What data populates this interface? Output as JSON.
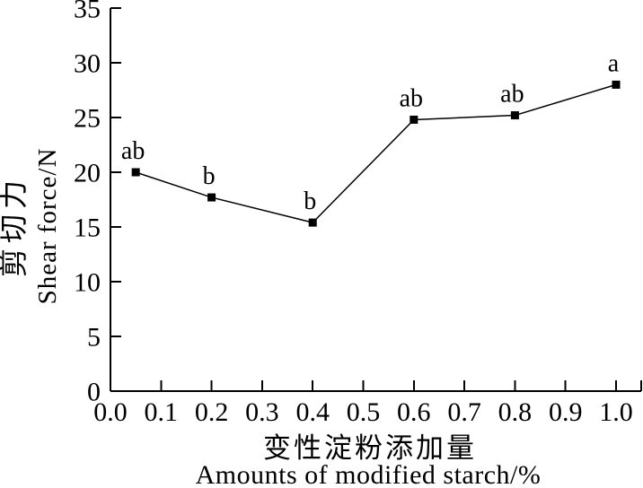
{
  "chart_data": {
    "type": "line",
    "title": "",
    "series": [
      {
        "name": "Shear force",
        "x": [
          0.05,
          0.2,
          0.4,
          0.6,
          0.8,
          1.0
        ],
        "y": [
          20.0,
          17.7,
          15.4,
          24.8,
          25.2,
          28.0
        ],
        "point_labels": [
          "ab",
          "b",
          "b",
          "ab",
          "ab",
          "a"
        ],
        "marker": "filled-square",
        "color": "#000000"
      }
    ],
    "xlabel_zh": "变性淀粉添加量",
    "xlabel_en": "Amounts of modified starch/%",
    "ylabel_zh": "剪切力",
    "ylabel_en": "Shear force/N",
    "x_tick_labels": [
      "0.0",
      "0.1",
      "0.2",
      "0.3",
      "0.4",
      "0.5",
      "0.6",
      "0.7",
      "0.8",
      "0.9",
      "1.0"
    ],
    "x_tick_values": [
      0.0,
      0.1,
      0.2,
      0.3,
      0.4,
      0.5,
      0.6,
      0.7,
      0.8,
      0.9,
      1.0
    ],
    "y_tick_labels": [
      "0",
      "5",
      "10",
      "15",
      "20",
      "25",
      "30",
      "35"
    ],
    "y_tick_values": [
      0,
      5,
      10,
      15,
      20,
      25,
      30,
      35
    ],
    "xlim": [
      0,
      1.05
    ],
    "ylim": [
      0,
      35
    ],
    "grid": false,
    "legend": "none",
    "ticks_direction": "in",
    "background_color": "#ffffff",
    "axis_color": "#000000"
  }
}
